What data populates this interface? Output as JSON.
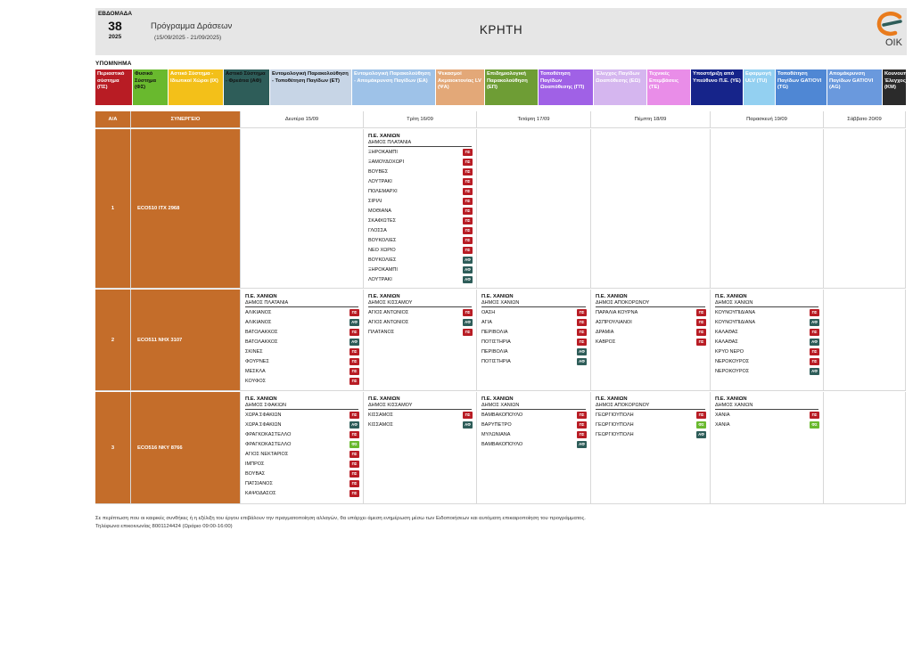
{
  "header": {
    "week_label": "ΕΒΔΟΜΑΔΑ",
    "week_number": "38",
    "year": "2025",
    "program_title": "Πρόγραμμα Δράσεων",
    "program_dates": "(15/09/2025 - 21/09/2025)",
    "region": "ΚΡΗΤΗ",
    "logo_text": "ΟΙΚ"
  },
  "legend": {
    "title": "ΥΠΟΜΝΗΜΑ",
    "items": [
      {
        "label": "Περιαστικό σύστημα (ΠΣ)",
        "bg": "#b81c24",
        "fg": "#ffffff",
        "w": 42
      },
      {
        "label": "Φυσικό Σύστημα (ΦΣ)",
        "bg": "#69b92e",
        "fg": "#111111",
        "w": 40
      },
      {
        "label": "Αστικό Σύστημα - Ιδιωτικοί Χώροι (ΙΧ)",
        "bg": "#f3c019",
        "fg": "#ffffff",
        "w": 62
      },
      {
        "label": "Αστικό Σύστημα - Φρεάτια (ΑΦ)",
        "bg": "#2e5d59",
        "fg": "#111111",
        "w": 52
      },
      {
        "label": "Εντομολογική Παρακολούθηση - Τοποθέτηση Παγίδων (ΕΤ)",
        "bg": "#c7d5e6",
        "fg": "#111111",
        "w": 92
      },
      {
        "label": "Εντομολογική Παρακολούθηση - Απομάκρυνση Παγίδων (ΕΑ)",
        "bg": "#9ec2e8",
        "fg": "#ffffff",
        "w": 94
      },
      {
        "label": "Ψεκασμοί Ακμαιοκτονίας LV (ΨΑ)",
        "bg": "#e3a878",
        "fg": "#ffffff",
        "w": 55
      },
      {
        "label": "Επιδημιολογική Παρακολούθηση (ΕΠ)",
        "bg": "#6e9d35",
        "fg": "#ffffff",
        "w": 60
      },
      {
        "label": "Τοποθέτηση Παγίδων Ωοαπόθεσης (ΓΠ)",
        "bg": "#a061e6",
        "fg": "#ffffff",
        "w": 62
      },
      {
        "label": "Έλεγχος Παγίδων Ωοαπόθεσης (ΕΩ)",
        "bg": "#d5b6ef",
        "fg": "#ffffff",
        "w": 60
      },
      {
        "label": "Τεχνικές Επεμβάσεις (ΤΕ)",
        "bg": "#e98de8",
        "fg": "#ffffff",
        "w": 49
      },
      {
        "label": "Υποστήριξη από Υπεύθυνο Π.Ε. (ΥΕ)",
        "bg": "#16248a",
        "fg": "#ffffff",
        "w": 59
      },
      {
        "label": "Εφαρμογή ULV (ΤU)",
        "bg": "#93d0f1",
        "fg": "#ffffff",
        "w": 36
      },
      {
        "label": "Τοποθέτηση Παγίδων GAT/OVI (ΤG)",
        "bg": "#4f87d4",
        "fg": "#ffffff",
        "w": 58
      },
      {
        "label": "Απομάκρυνση Παγίδων GAT/OVI (AG)",
        "bg": "#6a99dd",
        "fg": "#ffffff",
        "w": 62
      },
      {
        "label": "Κουνουπιών Έλεγχος (ΚΜ)",
        "bg": "#2b2b2b",
        "fg": "#ffffff",
        "w": 27
      }
    ]
  },
  "table": {
    "headers": {
      "aa": "Α/Α",
      "team": "ΣΥΝΕΡΓΕΙΟ",
      "days": [
        "Δευτέρα 15/09",
        "Τρίτη 16/09",
        "Τετάρτη 17/09",
        "Πέμπτη 18/09",
        "Παρασκευή 19/09",
        "Σάββατο 20/09"
      ]
    },
    "rows": [
      {
        "aa": "1",
        "team": "ECO510  ΙΤΧ 2968",
        "days": [
          null,
          {
            "pe": "Π.Ε. ΧΑΝΙΩΝ",
            "dimos": "ΔΗΜΟΣ ΠΛΑΤΑΝΙΑ",
            "items": [
              {
                "name": "ΞΗΡΟΚΑΜΠΙ",
                "code": "ΠΣ"
              },
              {
                "name": "ΞΑΜΟΥΔΟΧΩΡΙ",
                "code": "ΠΣ"
              },
              {
                "name": "ΒΟΥΒΕΣ",
                "code": "ΠΣ"
              },
              {
                "name": "ΛΟΥΤΡΑΚΙ",
                "code": "ΠΣ"
              },
              {
                "name": "ΠΟΛΕΜΑΡΧΙ",
                "code": "ΠΣ"
              },
              {
                "name": "ΣΙΡΙΛΙ",
                "code": "ΠΣ"
              },
              {
                "name": "ΜΟΘΙΑΝΑ",
                "code": "ΠΣ"
              },
              {
                "name": "ΣΚΑΦΙΩΤΕΣ",
                "code": "ΠΣ"
              },
              {
                "name": "ΓΛΟΣΣΑ",
                "code": "ΠΣ"
              },
              {
                "name": "ΒΟΥΚΟΛΙΕΣ",
                "code": "ΠΣ"
              },
              {
                "name": "ΝΕΟ ΧΩΡΙΟ",
                "code": "ΠΣ"
              },
              {
                "name": "ΒΟΥΚΟΛΙΕΣ",
                "code": "ΑΦ"
              },
              {
                "name": "ΞΗΡΟΚΑΜΠΙ",
                "code": "ΑΦ"
              },
              {
                "name": "ΛΟΥΤΡΑΚΙ",
                "code": "ΑΦ"
              }
            ]
          },
          null,
          null,
          null,
          null
        ]
      },
      {
        "aa": "2",
        "team": "ECO511  ΝΗΧ 3107",
        "days": [
          {
            "pe": "Π.Ε. ΧΑΝΙΩΝ",
            "dimos": "ΔΗΜΟΣ ΠΛΑΤΑΝΙΑ",
            "items": [
              {
                "name": "ΑΛΙΚΙΑΝΟΣ",
                "code": "ΠΣ"
              },
              {
                "name": "ΑΛΙΚΙΑΝΟΣ",
                "code": "ΑΦ"
              },
              {
                "name": "ΒΑΤΟΛΑΚΚΟΣ",
                "code": "ΠΣ"
              },
              {
                "name": "ΒΑΤΟΛΑΚΚΟΣ",
                "code": "ΑΦ"
              },
              {
                "name": "ΣΚΙΝΕΣ",
                "code": "ΠΣ"
              },
              {
                "name": "ΦΟΥΡΝΕΣ",
                "code": "ΠΣ"
              },
              {
                "name": "ΜΕΣΚΛΑ",
                "code": "ΠΣ"
              },
              {
                "name": "ΚΟΥΦΟΣ",
                "code": "ΠΣ"
              }
            ]
          },
          {
            "pe": "Π.Ε. ΧΑΝΙΩΝ",
            "dimos": "ΔΗΜΟΣ ΚΙΣΣΑΜΟΥ",
            "items": [
              {
                "name": "ΑΓΙΟΣ ΑΝΤΩΝΙΟΣ",
                "code": "ΠΣ"
              },
              {
                "name": "ΑΓΙΟΣ ΑΝΤΩΝΙΟΣ",
                "code": "ΑΦ"
              },
              {
                "name": "ΠΛΑΤΑΝΟΣ",
                "code": "ΠΣ"
              }
            ]
          },
          {
            "pe": "Π.Ε. ΧΑΝΙΩΝ",
            "dimos": "ΔΗΜΟΣ ΧΑΝΙΩΝ",
            "items": [
              {
                "name": "ΟΑΣΗ",
                "code": "ΠΣ"
              },
              {
                "name": "ΑΓΙΑ",
                "code": "ΠΣ"
              },
              {
                "name": "ΠΕΡΙΒΟΛΙΑ",
                "code": "ΠΣ"
              },
              {
                "name": "ΠΟΤΙΣΤΗΡΙΑ",
                "code": "ΠΣ"
              },
              {
                "name": "ΠΕΡΙΒΟΛΙΑ",
                "code": "ΑΦ"
              },
              {
                "name": "ΠΟΤΙΣΤΗΡΙΑ",
                "code": "ΑΦ"
              }
            ]
          },
          {
            "pe": "Π.Ε. ΧΑΝΙΩΝ",
            "dimos": "ΔΗΜΟΣ ΑΠΟΚΟΡΩΝΟΥ",
            "items": [
              {
                "name": "ΠΑΡΑΛΙΑ ΚΟΥΡΝΑ",
                "code": "ΠΣ"
              },
              {
                "name": "ΑΣΠΡΟΥΛΙΑΝΟΙ",
                "code": "ΠΣ"
              },
              {
                "name": "ΔΡΑΜΙΑ",
                "code": "ΠΣ"
              },
              {
                "name": "ΚΑΒΡΟΣ",
                "code": "ΠΣ"
              }
            ]
          },
          {
            "pe": "Π.Ε. ΧΑΝΙΩΝ",
            "dimos": "ΔΗΜΟΣ ΧΑΝΙΩΝ",
            "items": [
              {
                "name": "ΚΟΥΝΟΥΠΙΔΙΑΝΑ",
                "code": "ΠΣ"
              },
              {
                "name": "ΚΟΥΝΟΥΠΙΔΙΑΝΑ",
                "code": "ΑΦ"
              },
              {
                "name": "ΚΑΛΑΘΑΣ",
                "code": "ΠΣ"
              },
              {
                "name": "ΚΑΛΑΘΑΣ",
                "code": "ΑΦ"
              },
              {
                "name": "ΚΡΥΟ ΝΕΡΟ",
                "code": "ΠΣ"
              },
              {
                "name": "ΝΕΡΟΚΟΥΡΟΣ",
                "code": "ΠΣ"
              },
              {
                "name": "ΝΕΡΟΚΟΥΡΟΣ",
                "code": "ΑΦ"
              }
            ]
          },
          null
        ]
      },
      {
        "aa": "3",
        "team": "ECO516  ΝΚΥ 8766",
        "days": [
          {
            "pe": "Π.Ε. ΧΑΝΙΩΝ",
            "dimos": "ΔΗΜΟΣ ΣΦΑΚΙΩΝ",
            "items": [
              {
                "name": "ΧΩΡΑ ΣΦΑΚΙΩΝ",
                "code": "ΠΣ"
              },
              {
                "name": "ΧΩΡΑ ΣΦΑΚΙΩΝ",
                "code": "ΑΦ"
              },
              {
                "name": "ΦΡΑΓΚΟΚΑΣΤΕΛΛΟ",
                "code": "ΠΣ"
              },
              {
                "name": "ΦΡΑΓΚΟΚΑΣΤΕΛΛΟ",
                "code": "ΦΣ"
              },
              {
                "name": "ΑΓΙΟΣ ΝΕΚΤΑΡΙΟΣ",
                "code": "ΠΣ"
              },
              {
                "name": "ΙΜΠΡΟΣ",
                "code": "ΠΣ"
              },
              {
                "name": "ΒΟΥΒΑΣ",
                "code": "ΠΣ"
              },
              {
                "name": "ΠΑΤΣΙΑΝΟΣ",
                "code": "ΠΣ"
              },
              {
                "name": "ΚΑΨΟΔΑΣΟΣ",
                "code": "ΠΣ"
              }
            ]
          },
          {
            "pe": "Π.Ε. ΧΑΝΙΩΝ",
            "dimos": "ΔΗΜΟΣ ΚΙΣΣΑΜΟΥ",
            "items": [
              {
                "name": "ΚΙΣΣΑΜΟΣ",
                "code": "ΠΣ"
              },
              {
                "name": "ΚΙΣΣΑΜΟΣ",
                "code": "ΑΦ"
              }
            ]
          },
          {
            "pe": "Π.Ε. ΧΑΝΙΩΝ",
            "dimos": "ΔΗΜΟΣ ΧΑΝΙΩΝ",
            "items": [
              {
                "name": "ΒΑΜΒΑΚΟΠΟΥΛΟ",
                "code": "ΠΣ"
              },
              {
                "name": "ΒΑΡΥΠΕΤΡΟ",
                "code": "ΠΣ"
              },
              {
                "name": "ΜΥΛΩΝΙΑΝΑ",
                "code": "ΠΣ"
              },
              {
                "name": "ΒΑΜΒΑΚΟΠΟΥΛΟ",
                "code": "ΑΦ"
              }
            ]
          },
          {
            "pe": "Π.Ε. ΧΑΝΙΩΝ",
            "dimos": "ΔΗΜΟΣ ΑΠΟΚΟΡΩΝΟΥ",
            "items": [
              {
                "name": "ΓΕΩΡΓΙΟΥΠΟΛΗ",
                "code": "ΠΣ"
              },
              {
                "name": "ΓΕΩΡΓΙΟΥΠΟΛΗ",
                "code": "ΦΣ"
              },
              {
                "name": "ΓΕΩΡΓΙΟΥΠΟΛΗ",
                "code": "ΑΦ"
              }
            ]
          },
          {
            "pe": "Π.Ε. ΧΑΝΙΩΝ",
            "dimos": "ΔΗΜΟΣ ΧΑΝΙΩΝ",
            "items": [
              {
                "name": "ΧΑΝΙΑ",
                "code": "ΠΣ"
              },
              {
                "name": "ΧΑΝΙΑ",
                "code": "ΦΣ"
              }
            ]
          },
          null
        ]
      }
    ]
  },
  "footer": {
    "line1": "Σε περίπτωση που οι καιρικές συνθήκες ή η εξέλιξη του έργου επιβάλουν την πραγματοποίηση αλλαγών, θα υπάρχει άμεση ενημέρωση μέσω των Ειδοποιήσεων και αυτόματη επικαιροποίηση του προγράμματος.",
    "line2": "Τηλέφωνα επικοινωνίας 8001124424 (Ωράριο 09:00-16:00)"
  }
}
